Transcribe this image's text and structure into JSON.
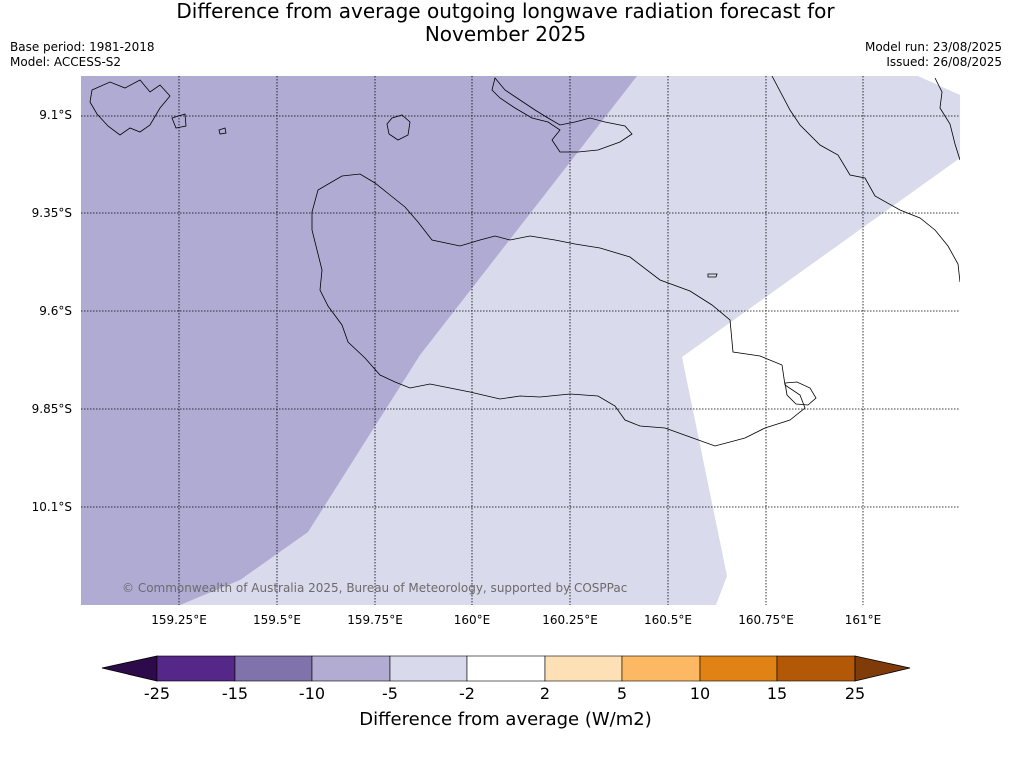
{
  "title_line1": "Difference from average outgoing longwave radiation forecast for",
  "title_line2": "November 2025",
  "base_period": "Base period: 1981-2018",
  "model": "Model: ACCESS-S2",
  "model_run": "Model run: 23/08/2025",
  "issued": "Issued: 26/08/2025",
  "lat_labels": [
    "9.1°S",
    "9.35°S",
    "9.6°S",
    "9.85°S",
    "10.1°S"
  ],
  "lon_labels": [
    "159.25°E",
    "159.5°E",
    "159.75°E",
    "160°E",
    "160.25°E",
    "160.5°E",
    "160.75°E",
    "161°E"
  ],
  "copyright": "© Commonwealth of Australia 2025, Bureau of Meteorology, supported by COSPPac",
  "colorbar": {
    "label": "Difference from average (W/m2)",
    "ticks": [
      "-25",
      "-15",
      "-10",
      "-5",
      "-2",
      "2",
      "5",
      "10",
      "15",
      "25"
    ],
    "colors": [
      "#2d0a4a",
      "#542788",
      "#8073ac",
      "#b2abd2",
      "#d8daeb",
      "#ffffff",
      "#fee0b6",
      "#fdb863",
      "#e08214",
      "#b35806",
      "#7f3b08"
    ]
  },
  "field_colors": {
    "minus10_to_minus5": "#b0abd3",
    "minus5_to_minus2": "#d9daeb",
    "neutral": "#ffffff"
  }
}
